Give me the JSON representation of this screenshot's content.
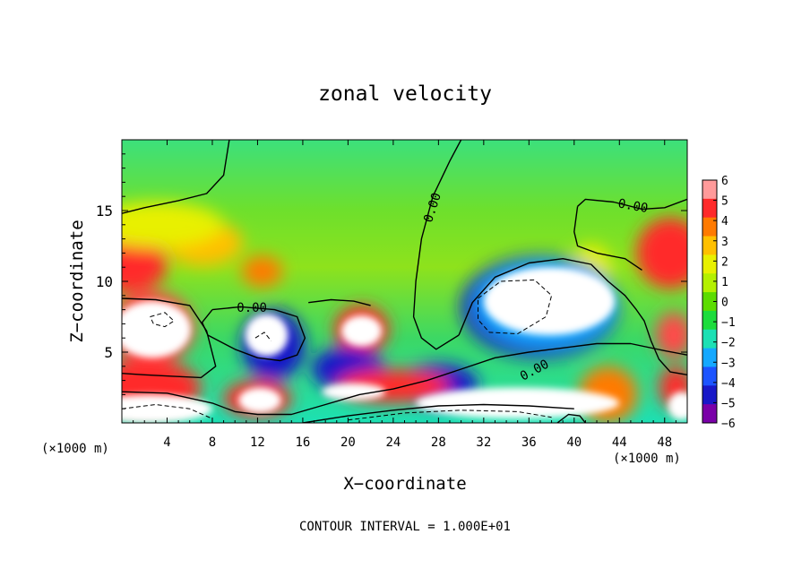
{
  "chart_data": {
    "type": "heatmap",
    "title": "zonal velocity",
    "xlabel": "X−coordinate",
    "ylabel": "Z−coordinate",
    "x_unit_left": "(×1000 m)",
    "x_unit_right": "(×1000 m)",
    "footer": "CONTOUR INTERVAL = 1.000E+01",
    "xlim": [
      0,
      50
    ],
    "ylim": [
      0,
      20
    ],
    "x_ticks": [
      4,
      8,
      12,
      16,
      20,
      24,
      28,
      32,
      36,
      40,
      44,
      48
    ],
    "y_ticks": [
      5,
      10,
      15
    ],
    "colorbar": {
      "levels": [
        6,
        5,
        4,
        3,
        2,
        1,
        0,
        -1,
        -2,
        -3,
        -4,
        -5,
        -6
      ],
      "range": [
        -6,
        6
      ],
      "labels": [
        "6",
        "5",
        "4",
        "3",
        "2",
        "1",
        "0",
        "−1",
        "−2",
        "−3",
        "−4",
        "−5",
        "−6"
      ],
      "colors": [
        "#ff9a9a",
        "#ff2a2a",
        "#ff7a00",
        "#ffc000",
        "#e8f000",
        "#b4f000",
        "#5cdc00",
        "#1cdc3c",
        "#1ce0b4",
        "#14a8ff",
        "#1c54ff",
        "#1818c8",
        "#7a00a8"
      ]
    },
    "contour_labels": [
      {
        "text": "0.00",
        "x": 27.5,
        "y": 15.2,
        "angle": -72
      },
      {
        "text": "0.00",
        "x": 45.2,
        "y": 15.3,
        "angle": 10
      },
      {
        "text": "0.00",
        "x": 11.5,
        "y": 8.1,
        "angle": 0
      },
      {
        "text": "0.00",
        "x": 36.5,
        "y": 3.7,
        "angle": -28
      }
    ],
    "blobs": [
      {
        "x": 0.5,
        "y": 11.2,
        "rx": 3.5,
        "ry": 2.0,
        "color": "#ff2a2a"
      },
      {
        "x": 7.2,
        "y": 12.7,
        "rx": 3.5,
        "ry": 1.6,
        "color": "#ffc000"
      },
      {
        "x": 12.4,
        "y": 10.7,
        "rx": 1.8,
        "ry": 1.1,
        "color": "#ff7a00"
      },
      {
        "x": 3.0,
        "y": 14.0,
        "rx": 6.0,
        "ry": 1.6,
        "color": "#e8f000"
      },
      {
        "x": 48.5,
        "y": 12.0,
        "rx": 3.0,
        "ry": 2.5,
        "color": "#ff2a2a"
      },
      {
        "x": 41.5,
        "y": 11.0,
        "rx": 1.8,
        "ry": 1.6,
        "color": "#e8f000"
      },
      {
        "x": 2.6,
        "y": 6.7,
        "rx": 3.8,
        "ry": 2.6,
        "color": "#ff4a4a"
      },
      {
        "x": 21.2,
        "y": 6.6,
        "rx": 2.4,
        "ry": 1.7,
        "color": "#ff2a2a"
      },
      {
        "x": 20.0,
        "y": 3.8,
        "rx": 3.2,
        "ry": 1.6,
        "color": "#1818c8"
      },
      {
        "x": 28.0,
        "y": 2.7,
        "rx": 3.5,
        "ry": 1.5,
        "color": "#1818c8"
      },
      {
        "x": 13.4,
        "y": 5.5,
        "rx": 2.8,
        "ry": 2.5,
        "color": "#1818c8"
      },
      {
        "x": 37.0,
        "y": 8.2,
        "rx": 7.0,
        "ry": 3.6,
        "color": "#1818c8"
      },
      {
        "x": 37.5,
        "y": 8.4,
        "rx": 6.2,
        "ry": 3.0,
        "color": "#14a8ff"
      },
      {
        "x": 24.0,
        "y": 2.6,
        "rx": 5.0,
        "ry": 1.2,
        "color": "#ff2a2a"
      },
      {
        "x": 43.0,
        "y": 2.0,
        "rx": 2.6,
        "ry": 2.0,
        "color": "#ff7a00"
      },
      {
        "x": 12.0,
        "y": 1.7,
        "rx": 3.0,
        "ry": 1.3,
        "color": "#ff2a2a"
      },
      {
        "x": 2.0,
        "y": 2.5,
        "rx": 5.0,
        "ry": 2.0,
        "color": "#ff2a2a"
      },
      {
        "x": 48.8,
        "y": 6.2,
        "rx": 1.6,
        "ry": 1.6,
        "color": "#ff4a4a"
      },
      {
        "x": 49.0,
        "y": 2.5,
        "rx": 1.5,
        "ry": 1.5,
        "color": "#ff2a2a"
      }
    ],
    "saturated_regions": [
      {
        "x": 2.7,
        "y": 6.6,
        "rx": 3.4,
        "ry": 2.0
      },
      {
        "x": 12.8,
        "y": 6.2,
        "rx": 1.9,
        "ry": 1.5
      },
      {
        "x": 21.2,
        "y": 6.5,
        "rx": 1.8,
        "ry": 1.1
      },
      {
        "x": 20.5,
        "y": 2.2,
        "rx": 2.8,
        "ry": 0.6
      },
      {
        "x": 37.8,
        "y": 8.6,
        "rx": 5.8,
        "ry": 2.4
      },
      {
        "x": 12.2,
        "y": 1.6,
        "rx": 1.9,
        "ry": 0.9
      },
      {
        "x": 35.0,
        "y": 1.4,
        "rx": 9.0,
        "ry": 1.1
      },
      {
        "x": 2.5,
        "y": 1.0,
        "rx": 5.5,
        "ry": 1.0
      },
      {
        "x": 49.5,
        "y": 1.2,
        "rx": 1.2,
        "ry": 1.0
      }
    ],
    "solid_contours": [
      [
        [
          0,
          14.8
        ],
        [
          2,
          15.2
        ],
        [
          5,
          15.7
        ],
        [
          7.5,
          16.2
        ],
        [
          9,
          17.5
        ],
        [
          9.5,
          20
        ]
      ],
      [
        [
          30,
          20
        ],
        [
          29,
          18.5
        ],
        [
          27.5,
          16
        ],
        [
          26.5,
          13
        ],
        [
          26,
          10
        ],
        [
          25.8,
          7.5
        ],
        [
          26.5,
          6.0
        ],
        [
          27.8,
          5.2
        ],
        [
          29.8,
          6.2
        ]
      ],
      [
        [
          29.8,
          6.2
        ],
        [
          31,
          8.5
        ],
        [
          33,
          10.3
        ],
        [
          36,
          11.3
        ],
        [
          39,
          11.6
        ],
        [
          41.5,
          11.2
        ],
        [
          43,
          10.0
        ],
        [
          44.5,
          9.0
        ],
        [
          45.5,
          8.0
        ],
        [
          46.2,
          7.2
        ],
        [
          46.8,
          5.8
        ],
        [
          47.5,
          4.5
        ],
        [
          48.5,
          3.6
        ],
        [
          50,
          3.4
        ]
      ],
      [
        [
          40.3,
          15.3
        ],
        [
          41,
          15.8
        ],
        [
          43.5,
          15.6
        ],
        [
          46,
          15.1
        ],
        [
          48,
          15.2
        ],
        [
          50,
          15.8
        ]
      ],
      [
        [
          40.3,
          15.3
        ],
        [
          40.0,
          13.5
        ],
        [
          40.3,
          12.5
        ],
        [
          42.0,
          12.0
        ],
        [
          44.5,
          11.6
        ],
        [
          46.0,
          10.8
        ]
      ],
      [
        [
          8.0,
          8.0
        ],
        [
          10.5,
          8.2
        ],
        [
          13.5,
          8.0
        ],
        [
          15.5,
          7.5
        ],
        [
          16.2,
          6.0
        ],
        [
          15.5,
          4.8
        ],
        [
          14.0,
          4.4
        ],
        [
          12.0,
          4.6
        ],
        [
          10.0,
          5.2
        ],
        [
          7.6,
          6.2
        ],
        [
          7.1,
          7.1
        ],
        [
          8.0,
          8.0
        ]
      ],
      [
        [
          0,
          8.8
        ],
        [
          3,
          8.7
        ],
        [
          6,
          8.3
        ],
        [
          7.5,
          6.5
        ],
        [
          8.3,
          4.0
        ],
        [
          7.0,
          3.2
        ],
        [
          4.5,
          3.3
        ],
        [
          2.0,
          3.4
        ],
        [
          0,
          3.5
        ]
      ],
      [
        [
          0,
          2.2
        ],
        [
          4,
          2.1
        ],
        [
          8,
          1.4
        ],
        [
          10,
          0.8
        ],
        [
          12,
          0.6
        ],
        [
          15,
          0.6
        ],
        [
          18,
          1.3
        ],
        [
          21,
          2.0
        ],
        [
          24,
          2.4
        ],
        [
          27,
          3.0
        ],
        [
          30,
          3.8
        ],
        [
          33,
          4.6
        ],
        [
          36,
          5.0
        ],
        [
          39,
          5.3
        ],
        [
          42,
          5.6
        ],
        [
          45,
          5.6
        ],
        [
          48,
          5.1
        ],
        [
          50,
          4.8
        ]
      ],
      [
        [
          16,
          0
        ],
        [
          20,
          0.5
        ],
        [
          24,
          0.9
        ],
        [
          28,
          1.2
        ],
        [
          32,
          1.3
        ],
        [
          36,
          1.2
        ],
        [
          40,
          1.0
        ]
      ],
      [
        [
          16.5,
          8.5
        ],
        [
          18.5,
          8.7
        ],
        [
          20.5,
          8.6
        ],
        [
          22.0,
          8.3
        ]
      ],
      [
        [
          38.5,
          0
        ],
        [
          39.5,
          0.6
        ],
        [
          40.5,
          0.5
        ],
        [
          41,
          0
        ]
      ]
    ],
    "dashed_contours": [
      [
        [
          0,
          1.0
        ],
        [
          3,
          1.3
        ],
        [
          6,
          1.0
        ],
        [
          8,
          0.3
        ]
      ],
      [
        [
          2.5,
          7.5
        ],
        [
          3.8,
          7.8
        ],
        [
          4.6,
          7.2
        ],
        [
          3.8,
          6.8
        ],
        [
          2.8,
          7.0
        ],
        [
          2.5,
          7.5
        ]
      ],
      [
        [
          31.5,
          8.8
        ],
        [
          33.5,
          10.0
        ],
        [
          36.5,
          10.1
        ],
        [
          38.0,
          9.0
        ],
        [
          37.5,
          7.5
        ],
        [
          35,
          6.3
        ],
        [
          32.5,
          6.4
        ],
        [
          31.5,
          7.3
        ],
        [
          31.5,
          8.8
        ]
      ],
      [
        [
          11.8,
          6.0
        ],
        [
          12.6,
          6.4
        ],
        [
          13.2,
          5.8
        ]
      ],
      [
        [
          20,
          0.2
        ],
        [
          25,
          0.7
        ],
        [
          30,
          0.9
        ],
        [
          35,
          0.8
        ],
        [
          38,
          0.4
        ]
      ]
    ]
  }
}
